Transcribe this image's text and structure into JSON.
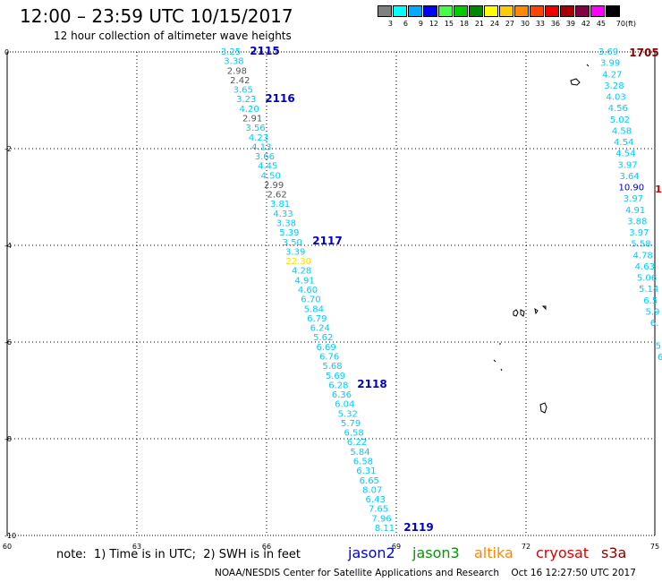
{
  "header": {
    "title": "12:00 – 23:59 UTC 10/15/2017",
    "subtitle": "12 hour collection of altimeter wave heights"
  },
  "legend": {
    "labels": [
      "3",
      "6",
      "9",
      "12",
      "15",
      "18",
      "21",
      "24",
      "27",
      "30",
      "33",
      "36",
      "39",
      "42",
      "45",
      "70"
    ],
    "unit": "(ft)",
    "colors": [
      "#808080",
      "#00ffff",
      "#00aaff",
      "#0000ff",
      "#44ff44",
      "#00cc00",
      "#008800",
      "#ffff00",
      "#ffcc00",
      "#ff8800",
      "#ff4400",
      "#ee0000",
      "#aa0000",
      "#880044",
      "#ff00ff",
      "#000000"
    ]
  },
  "map": {
    "x_ticks": [
      "60",
      "63",
      "66",
      "69",
      "72",
      "75"
    ],
    "y_ticks": [
      "0",
      "-2",
      "-4",
      "-6",
      "-8",
      "-10"
    ],
    "track_main": {
      "color": "#00ccff",
      "values": [
        "3.25",
        "3.38",
        "2.98",
        "2.42",
        "3.65",
        "3.23",
        "4.20",
        "2.91",
        "3.56",
        "4.23",
        "4.13",
        "3.66",
        "4.45",
        "4.50",
        "2.99",
        "2.62",
        "3.81",
        "4.33",
        "3.38",
        "5.39",
        "3.50",
        "3.39",
        "22.30",
        "4.28",
        "4.91",
        "4.60",
        "6.70",
        "5.84",
        "6.79",
        "6.24",
        "5.62",
        "6.69",
        "6.76",
        "5.68",
        "5.69",
        "6.28",
        "6.36",
        "6.04",
        "5.32",
        "5.79",
        "6.58",
        "6.22",
        "5.84",
        "6.58",
        "6.31",
        "6.65",
        "8.07",
        "6.43",
        "7.65",
        "7.96",
        "8.11"
      ],
      "value_colors": [
        "#00ccff",
        "#00ccff",
        "#555555",
        "#555555",
        "#00ccff",
        "#00ccff",
        "#00ccff",
        "#555555",
        "#00ccff",
        "#00ccff",
        "#00ccff",
        "#00ccff",
        "#00ccff",
        "#00ccff",
        "#555555",
        "#555555",
        "#00ccff",
        "#00ccff",
        "#00ccff",
        "#00ccff",
        "#00ccff",
        "#00ccff",
        "#ffdd00",
        "#00ccff",
        "#00ccff",
        "#00ccff",
        "#00ccff",
        "#00ccff",
        "#00ccff",
        "#00ccff",
        "#00ccff",
        "#00ccff",
        "#00ccff",
        "#00ccff",
        "#00ccff",
        "#00ccff",
        "#00ccff",
        "#00ccff",
        "#00ccff",
        "#00ccff",
        "#00ccff",
        "#00ccff",
        "#00ccff",
        "#00ccff",
        "#00ccff",
        "#00ccff",
        "#00ccff",
        "#00ccff",
        "#00ccff",
        "#00ccff",
        "#00ccff"
      ],
      "time_labels": [
        "2115",
        "2116",
        "2117",
        "2118",
        "2119"
      ],
      "time_color": "#0000cc"
    },
    "track_right": {
      "values": [
        "3.69",
        "3.99",
        "4.27",
        "3.28",
        "4.03",
        "4.56",
        "5.02",
        "4.58",
        "4.54",
        "4.54",
        "3.97",
        "3.64",
        "10.90",
        "3.97",
        "4.91",
        "3.88",
        "3.97",
        "5.58",
        "4.78",
        "4.63",
        "5.06",
        "5.14",
        "6.5",
        "5.9",
        "6.",
        "",
        "5",
        "6"
      ],
      "value_colors": [
        "#00ccff",
        "#00ccff",
        "#00ccff",
        "#00ccff",
        "#00ccff",
        "#00ccff",
        "#00ccff",
        "#00ccff",
        "#00ccff",
        "#00ccff",
        "#00ccff",
        "#00ccff",
        "#0000cc",
        "#00ccff",
        "#00ccff",
        "#00ccff",
        "#00ccff",
        "#00ccff",
        "#00ccff",
        "#00ccff",
        "#00ccff",
        "#00ccff",
        "#00ccff",
        "#00ccff",
        "#00ccff",
        "#00ccff",
        "#00ccff",
        "#00ccff"
      ],
      "time_label": "1705",
      "time_color": "#880000",
      "side_mark": "1",
      "side_mark_color": "#cc0000"
    }
  },
  "footer": {
    "note": "note:  1) Time is in UTC;  2) SWH is in feet",
    "satellites": [
      {
        "name": "jason2",
        "color": "#0000ee"
      },
      {
        "name": "jason3",
        "color": "#009900"
      },
      {
        "name": "altika",
        "color": "#ff8800"
      },
      {
        "name": "cryosat",
        "color": "#dd0000"
      },
      {
        "name": "s3a",
        "color": "#880000"
      }
    ],
    "credit": "NOAA/NESDIS Center for Satellite Applications and Research    Oct 16 12:27:50 UTC 2017"
  }
}
